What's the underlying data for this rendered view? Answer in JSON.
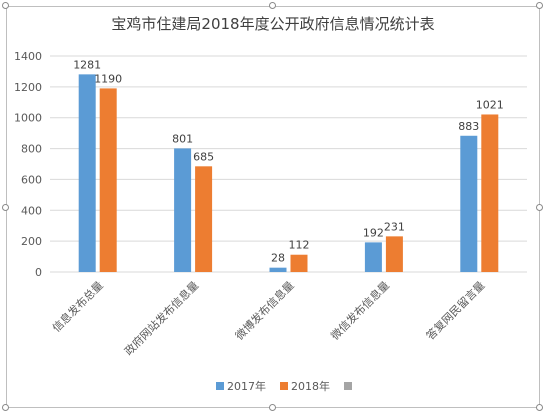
{
  "chart_data": {
    "type": "bar",
    "title": "宝鸡市住建局2018年度公开政府信息情况统计表",
    "categories": [
      "信息发布总量",
      "政府网站发布信息量",
      "微博发布信息量",
      "微信发布信息量",
      "答复网民留言量"
    ],
    "series": [
      {
        "name": "2017年",
        "values": [
          1281,
          801,
          28,
          192,
          883
        ],
        "color": "#5b9bd5"
      },
      {
        "name": "2018年",
        "values": [
          1190,
          685,
          112,
          231,
          1021
        ],
        "color": "#ed7d31"
      }
    ],
    "legend_extra_color": "#a5a5a5",
    "ylim": [
      0,
      1400
    ],
    "yticks": [
      0,
      200,
      400,
      600,
      800,
      1000,
      1200,
      1400
    ],
    "grid": true,
    "legend_position": "bottom"
  }
}
